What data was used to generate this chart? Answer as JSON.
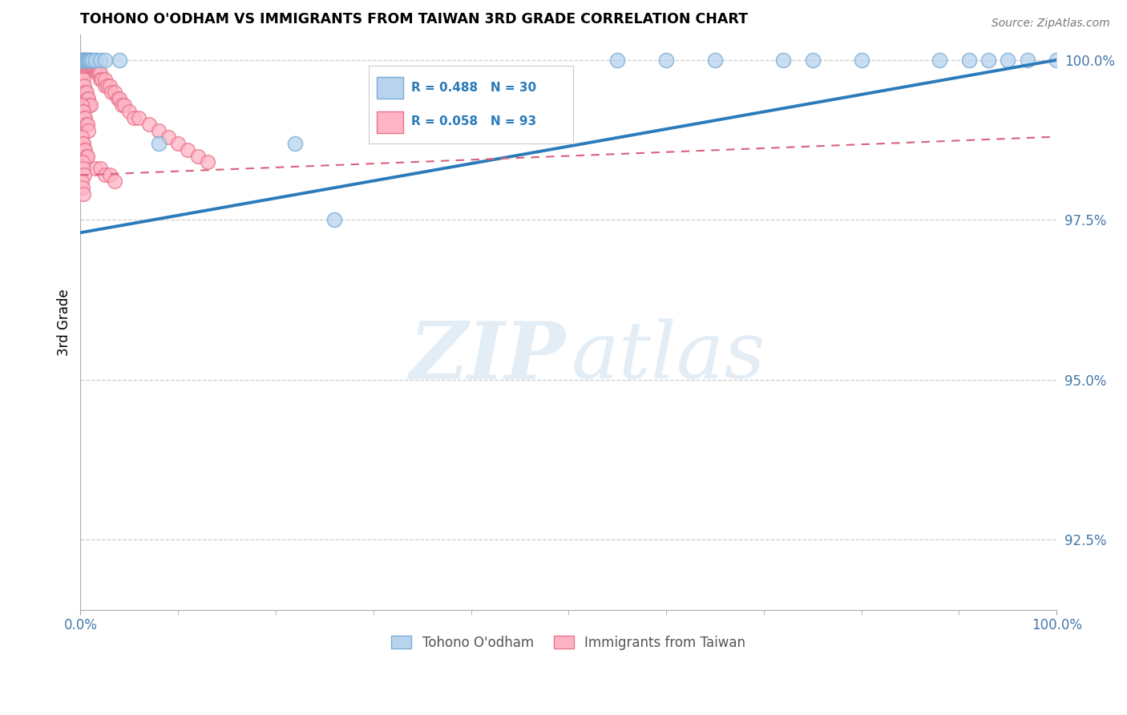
{
  "title": "TOHONO O'ODHAM VS IMMIGRANTS FROM TAIWAN 3RD GRADE CORRELATION CHART",
  "source": "Source: ZipAtlas.com",
  "ylabel": "3rd Grade",
  "xlim": [
    0.0,
    1.0
  ],
  "ylim": [
    0.914,
    1.004
  ],
  "yticks": [
    0.925,
    0.95,
    0.975,
    1.0
  ],
  "ytick_labels": [
    "92.5%",
    "95.0%",
    "97.5%",
    "100.0%"
  ],
  "xtick_left": "0.0%",
  "xtick_right": "100.0%",
  "watermark_zip": "ZIP",
  "watermark_atlas": "atlas",
  "blue_r": "R = 0.488",
  "blue_n": "N = 30",
  "pink_r": "R = 0.058",
  "pink_n": "N = 93",
  "blue_line_start_y": 0.973,
  "blue_line_end_y": 1.0,
  "pink_line_start_y": 0.982,
  "pink_line_end_y": 0.988,
  "blue_scatter_x": [
    0.001,
    0.002,
    0.003,
    0.004,
    0.005,
    0.006,
    0.007,
    0.008,
    0.009,
    0.01,
    0.012,
    0.015,
    0.02,
    0.025,
    0.04,
    0.08,
    0.22,
    0.26,
    0.55,
    0.6,
    0.65,
    0.72,
    0.75,
    0.8,
    0.88,
    0.91,
    0.93,
    0.95,
    0.97,
    1.0
  ],
  "blue_scatter_y": [
    1.0,
    1.0,
    1.0,
    1.0,
    1.0,
    1.0,
    1.0,
    1.0,
    1.0,
    1.0,
    1.0,
    1.0,
    1.0,
    1.0,
    1.0,
    0.987,
    0.987,
    0.975,
    1.0,
    1.0,
    1.0,
    1.0,
    1.0,
    1.0,
    1.0,
    1.0,
    1.0,
    1.0,
    1.0,
    1.0
  ],
  "pink_scatter_x": [
    0.001,
    0.001,
    0.001,
    0.002,
    0.002,
    0.002,
    0.003,
    0.003,
    0.003,
    0.004,
    0.004,
    0.005,
    0.005,
    0.006,
    0.006,
    0.007,
    0.007,
    0.008,
    0.008,
    0.009,
    0.009,
    0.01,
    0.01,
    0.011,
    0.012,
    0.012,
    0.013,
    0.014,
    0.015,
    0.015,
    0.016,
    0.017,
    0.018,
    0.019,
    0.02,
    0.02,
    0.022,
    0.025,
    0.025,
    0.028,
    0.03,
    0.032,
    0.035,
    0.038,
    0.04,
    0.042,
    0.045,
    0.05,
    0.055,
    0.06,
    0.07,
    0.08,
    0.09,
    0.1,
    0.11,
    0.12,
    0.13,
    0.015,
    0.02,
    0.025,
    0.03,
    0.035,
    0.003,
    0.004,
    0.005,
    0.006,
    0.007,
    0.008,
    0.009,
    0.01,
    0.001,
    0.002,
    0.003,
    0.004,
    0.005,
    0.006,
    0.007,
    0.008,
    0.001,
    0.002,
    0.003,
    0.004,
    0.005,
    0.006,
    0.007,
    0.002,
    0.003,
    0.004,
    0.001,
    0.002,
    0.003
  ],
  "pink_scatter_y": [
    1.0,
    0.999,
    0.998,
    1.0,
    0.999,
    0.998,
    1.0,
    0.999,
    0.998,
    1.0,
    0.999,
    1.0,
    0.999,
    1.0,
    0.999,
    1.0,
    0.999,
    1.0,
    0.999,
    1.0,
    0.999,
    1.0,
    0.999,
    0.999,
    1.0,
    0.999,
    0.999,
    0.999,
    1.0,
    0.999,
    0.999,
    0.998,
    0.998,
    0.998,
    0.998,
    0.997,
    0.997,
    0.996,
    0.997,
    0.996,
    0.996,
    0.995,
    0.995,
    0.994,
    0.994,
    0.993,
    0.993,
    0.992,
    0.991,
    0.991,
    0.99,
    0.989,
    0.988,
    0.987,
    0.986,
    0.985,
    0.984,
    0.983,
    0.983,
    0.982,
    0.982,
    0.981,
    0.997,
    0.996,
    0.995,
    0.995,
    0.994,
    0.994,
    0.993,
    0.993,
    0.993,
    0.992,
    0.992,
    0.991,
    0.991,
    0.99,
    0.99,
    0.989,
    0.988,
    0.987,
    0.987,
    0.986,
    0.986,
    0.985,
    0.985,
    0.984,
    0.983,
    0.982,
    0.981,
    0.98,
    0.979
  ]
}
